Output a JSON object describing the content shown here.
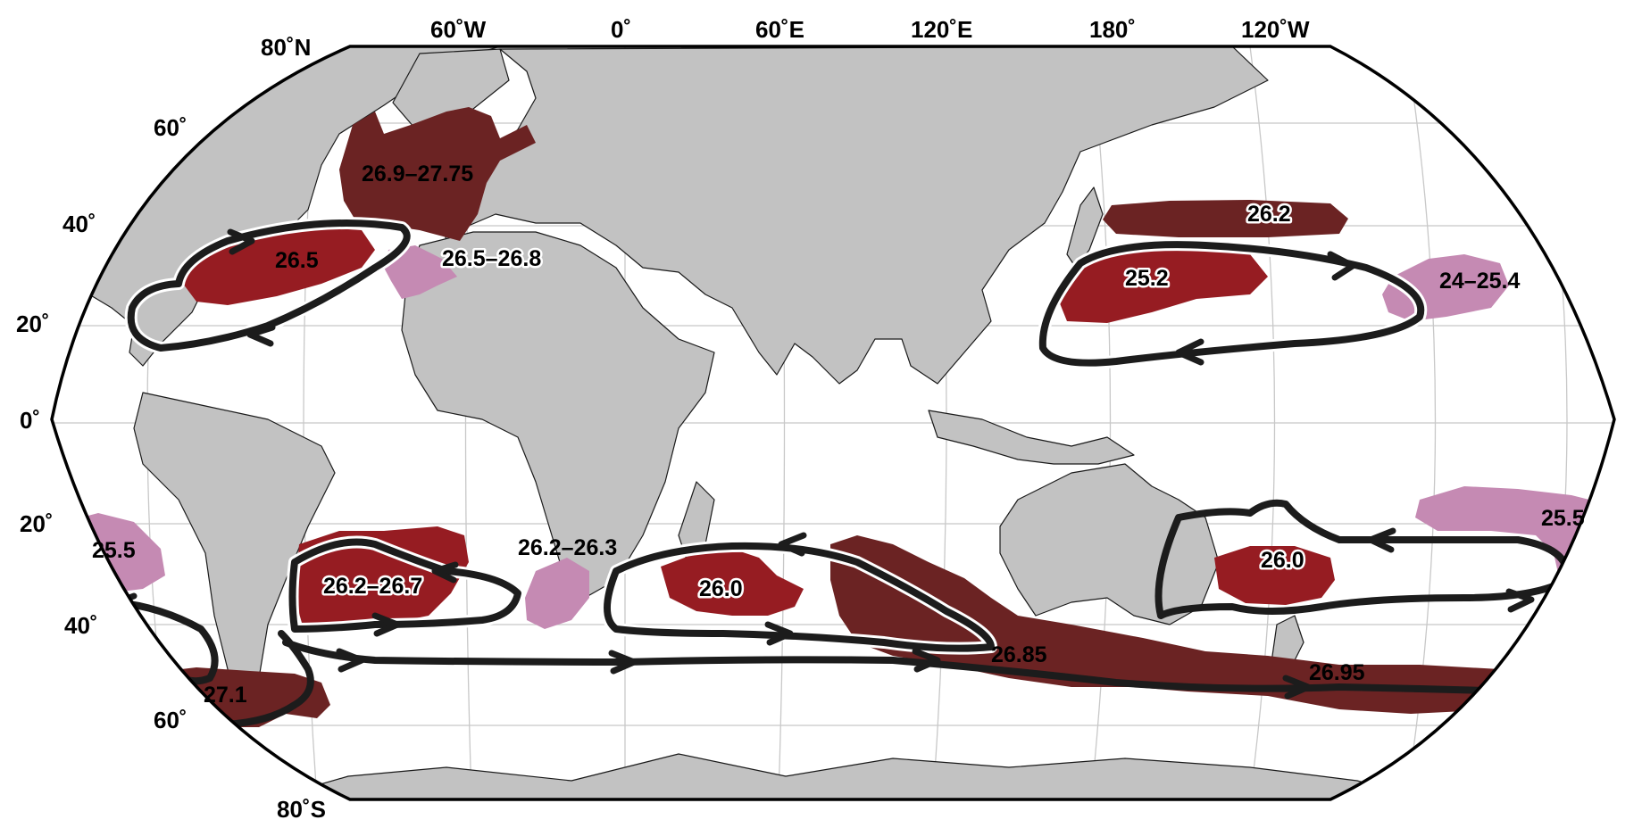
{
  "colors": {
    "ocean": "#ffffff",
    "land": "#c2c2c2",
    "graticule": "#c8c8c8",
    "density_high": "#6b2323",
    "density_mid": "#961c22",
    "density_low": "#c58ab3",
    "gyre_path": "#1c1c1c"
  },
  "top_longitude_labels": [
    "80˚N",
    "60˚W",
    "0˚",
    "60˚E",
    "120˚E",
    "180˚",
    "120˚W"
  ],
  "left_latitude_labels": [
    "60˚",
    "40˚",
    "20˚",
    "0˚",
    "20˚",
    "40˚",
    "60˚"
  ],
  "bottom_label": "80˚S",
  "density_regions": [
    {
      "label": "26.9–27.75",
      "shade": "density_high"
    },
    {
      "label": "26.5",
      "shade": "density_mid"
    },
    {
      "label": "26.5–26.8",
      "shade": "density_low"
    },
    {
      "label": "26.2",
      "shade": "density_high"
    },
    {
      "label": "25.2",
      "shade": "density_mid"
    },
    {
      "label": "24–25.4",
      "shade": "density_low"
    },
    {
      "label": "25.5",
      "shade": "density_low"
    },
    {
      "label": "26.2–26.7",
      "shade": "density_mid"
    },
    {
      "label": "26.2–26.3",
      "shade": "density_low"
    },
    {
      "label": "26.0",
      "shade": "density_mid"
    },
    {
      "label": "26.85",
      "shade": "density_high"
    },
    {
      "label": "26.0",
      "shade": "density_mid"
    },
    {
      "label": "25.5",
      "shade": "density_low"
    },
    {
      "label": "27.1",
      "shade": "density_high"
    },
    {
      "label": "26.95",
      "shade": "density_high"
    }
  ]
}
